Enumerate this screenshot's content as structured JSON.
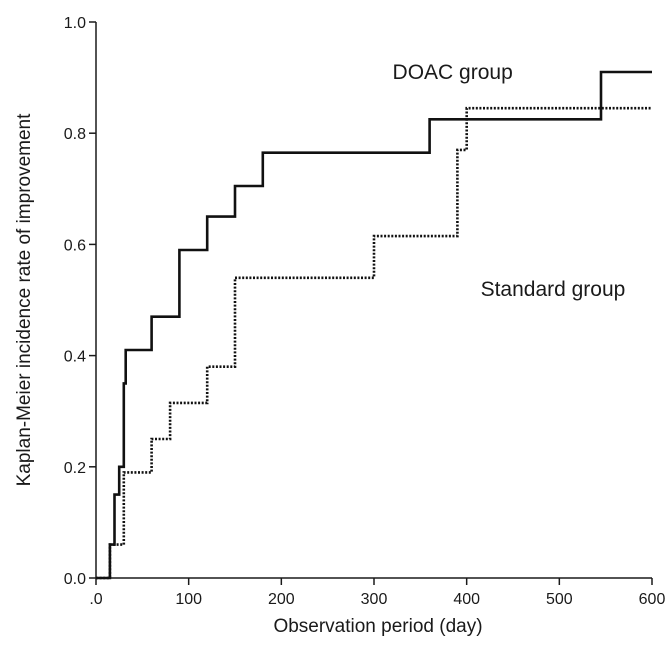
{
  "chart_data": {
    "type": "line",
    "title": "",
    "xlabel": "Observation period (day)",
    "ylabel": "Kaplan-Meier incidence rate of improvement",
    "xlim": [
      0,
      600
    ],
    "ylim": [
      0,
      1.0
    ],
    "x_ticks": [
      0,
      100,
      200,
      300,
      400,
      500,
      600
    ],
    "x_tick_labels": [
      ".0",
      "100",
      "200",
      "300",
      "400",
      "500",
      "600"
    ],
    "y_ticks": [
      0,
      0.2,
      0.4,
      0.6,
      0.8,
      1.0
    ],
    "y_tick_labels": [
      "0.0",
      "0.2",
      "0.4",
      "0.6",
      "0.8",
      "1.0"
    ],
    "grid": false,
    "legend": "none",
    "series": [
      {
        "name": "DOAC group",
        "style": "solid",
        "color": "#111111",
        "step": true,
        "x": [
          0,
          15,
          20,
          25,
          30,
          32,
          60,
          90,
          120,
          150,
          180,
          360,
          545,
          600
        ],
        "y": [
          0,
          0.06,
          0.15,
          0.2,
          0.35,
          0.41,
          0.47,
          0.59,
          0.65,
          0.705,
          0.765,
          0.825,
          0.91,
          0.91
        ]
      },
      {
        "name": "Standard group",
        "style": "dotted",
        "color": "#111111",
        "step": true,
        "x": [
          0,
          15,
          30,
          60,
          80,
          120,
          150,
          300,
          390,
          400,
          600
        ],
        "y": [
          0,
          0.06,
          0.19,
          0.25,
          0.315,
          0.38,
          0.54,
          0.615,
          0.77,
          0.845,
          0.845
        ]
      }
    ],
    "annotations": [
      {
        "text": "DOAC group",
        "x": 320,
        "y": 0.91
      },
      {
        "text": "Standard group",
        "x": 415,
        "y": 0.52
      }
    ]
  }
}
